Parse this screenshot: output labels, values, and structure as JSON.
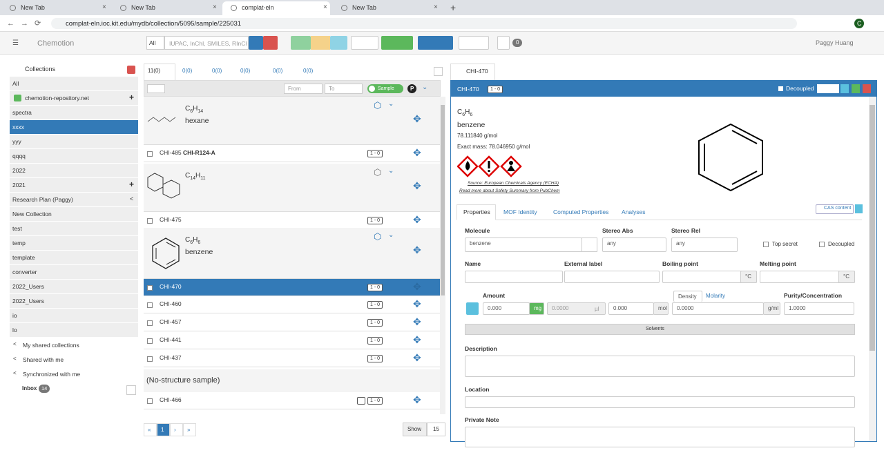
{
  "browser": {
    "tabs": [
      "New Tab",
      "New Tab",
      "complat-eln",
      "New Tab"
    ],
    "url": "complat-eln.ioc.kit.edu/mydb/collection/5095/sample/225031",
    "profile": "C"
  },
  "navbar": {
    "brand": "Chemotion",
    "search_scope": "All",
    "search_placeholder": "IUPAC, InChI, SMILES, RInChI",
    "inbox_count": "0",
    "user": "Paggy Huang"
  },
  "sidebar": {
    "title": "Collections",
    "collections": [
      "All",
      "chemotion-repository.net",
      "spectra",
      "xxxx",
      "yyy",
      "qqqq",
      "2022",
      "2021",
      "Research Plan (Paggy)",
      "New Collection",
      "test",
      "temp",
      "template",
      "converter",
      "2022_Users",
      "2022_Users",
      "io",
      "lo"
    ],
    "shared": [
      "My shared collections",
      "Shared with me",
      "Synchronized with me"
    ],
    "inbox": "Inbox",
    "inbox_count": "14"
  },
  "list": {
    "tabs": [
      "11(0)",
      "0(0)",
      "0(0)",
      "0(0)",
      "0(0)",
      "0(0)"
    ],
    "from": "From",
    "to": "To",
    "toggle": "Sample",
    "items": [
      {
        "formula": "C6H14",
        "name": "hexane",
        "id": "CHI-485",
        "label": "CHI-R124-A",
        "badge": "1 - 0"
      },
      {
        "formula": "C14H11",
        "id": "CHI-475",
        "badge": "1 - 0"
      },
      {
        "formula": "C6H6",
        "name": "benzene",
        "id": "CHI-470",
        "badge": "1 - 0"
      }
    ],
    "rows": [
      {
        "id": "CHI-460",
        "badge": "1 - 0"
      },
      {
        "id": "CHI-457",
        "badge": "1 - 0"
      },
      {
        "id": "CHI-441",
        "badge": "1 - 0"
      },
      {
        "id": "CHI-437",
        "badge": "1 - 0"
      }
    ],
    "no_structure_title": "(No-structure sample)",
    "no_structure_rows": [
      {
        "id": "CHI-466",
        "badge": "1 - 0"
      }
    ],
    "pagination": [
      "«",
      "1",
      "›",
      "»"
    ],
    "show": "Show",
    "per_page": "15"
  },
  "detail": {
    "tab": "CHI-470",
    "header": "CHI-470",
    "header_badge": "1 - 0",
    "decoupled": "Decoupled",
    "formula": "C6H6",
    "name": "benzene",
    "molecular_weight": "78.111840 g/mol",
    "exact_mass": "Exact mass: 78.046950 g/mol",
    "source": "Source: European Chemicals Agency (ECHA)",
    "pubchem": "Read more about Safety Summary from PubChem",
    "tabs": [
      "Properties",
      "MOF Identity",
      "Computed Properties",
      "Analyses"
    ],
    "cas": "CAS content",
    "form": {
      "molecule": "Molecule",
      "molecule_value": "benzene",
      "stereo_abs": "Stereo Abs",
      "stereo_abs_value": "any",
      "stereo_rel": "Stereo Rel",
      "stereo_rel_value": "any",
      "top_secret": "Top secret",
      "decoupled": "Decoupled",
      "name": "Name",
      "external_label": "External label",
      "boiling_point": "Boiling point",
      "melting_point": "Melting point",
      "temp_unit": "°C",
      "amount": "Amount",
      "density": "Density",
      "molarity": "Molarity",
      "purity": "Purity/Concentration",
      "mass": "0.000",
      "mass_unit": "mg",
      "volume": "0.0000",
      "volume_unit": "µl",
      "moles": "0.000",
      "moles_unit": "mol",
      "density_value": "0.0000",
      "density_unit": "g/ml",
      "purity_value": "1.0000",
      "solvents": "Solvents",
      "description": "Description",
      "location": "Location",
      "private_note": "Private Note"
    }
  }
}
